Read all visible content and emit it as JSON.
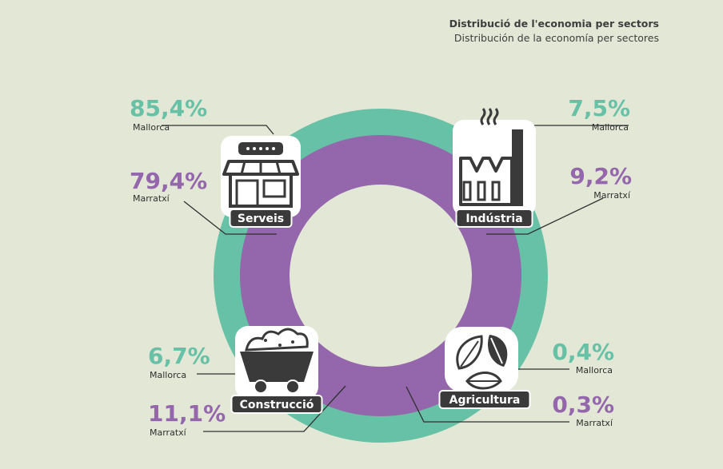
{
  "title_ca": "Distribució de l'economia per sectors",
  "title_es": "Distribución de la economía per sectores",
  "colors": {
    "background": "#e3e7d6",
    "mallorca": "#67c1a6",
    "marratxi": "#9466ab",
    "icon_dark": "#3a3a3a",
    "label_bg": "#3a3a3a"
  },
  "chart_data": {
    "type": "pie",
    "style": "two concentric rings (outer: Mallorca, inner: Marratxí)",
    "series": [
      {
        "name": "Mallorca",
        "ring": "outer",
        "values": [
          85.4,
          7.5,
          6.7,
          0.4
        ]
      },
      {
        "name": "Marratxí",
        "ring": "inner",
        "values": [
          79.4,
          9.2,
          11.1,
          0.3
        ]
      }
    ],
    "categories": [
      "Serveis",
      "Indústria",
      "Construcció",
      "Agricultura"
    ],
    "labels": [
      {
        "sector": "Serveis",
        "icon": "shop-icon",
        "mallorca_value": "85,4%",
        "mallorca_label": "Mallorca",
        "marratxi_value": "79,4%",
        "marratxi_label": "Marratxí"
      },
      {
        "sector": "Indústria",
        "icon": "factory-icon",
        "mallorca_value": "7,5%",
        "mallorca_label": "Mallorca",
        "marratxi_value": "9,2%",
        "marratxi_label": "Marratxí"
      },
      {
        "sector": "Construcció",
        "icon": "mine-cart-icon",
        "mallorca_value": "6,7%",
        "mallorca_label": "Mallorca",
        "marratxi_value": "11,1%",
        "marratxi_label": "Marratxí"
      },
      {
        "sector": "Agricultura",
        "icon": "leaves-icon",
        "mallorca_value": "0,4%",
        "mallorca_label": "Mallorca",
        "marratxi_value": "0,3%",
        "marratxi_label": "Marratxí"
      }
    ]
  }
}
